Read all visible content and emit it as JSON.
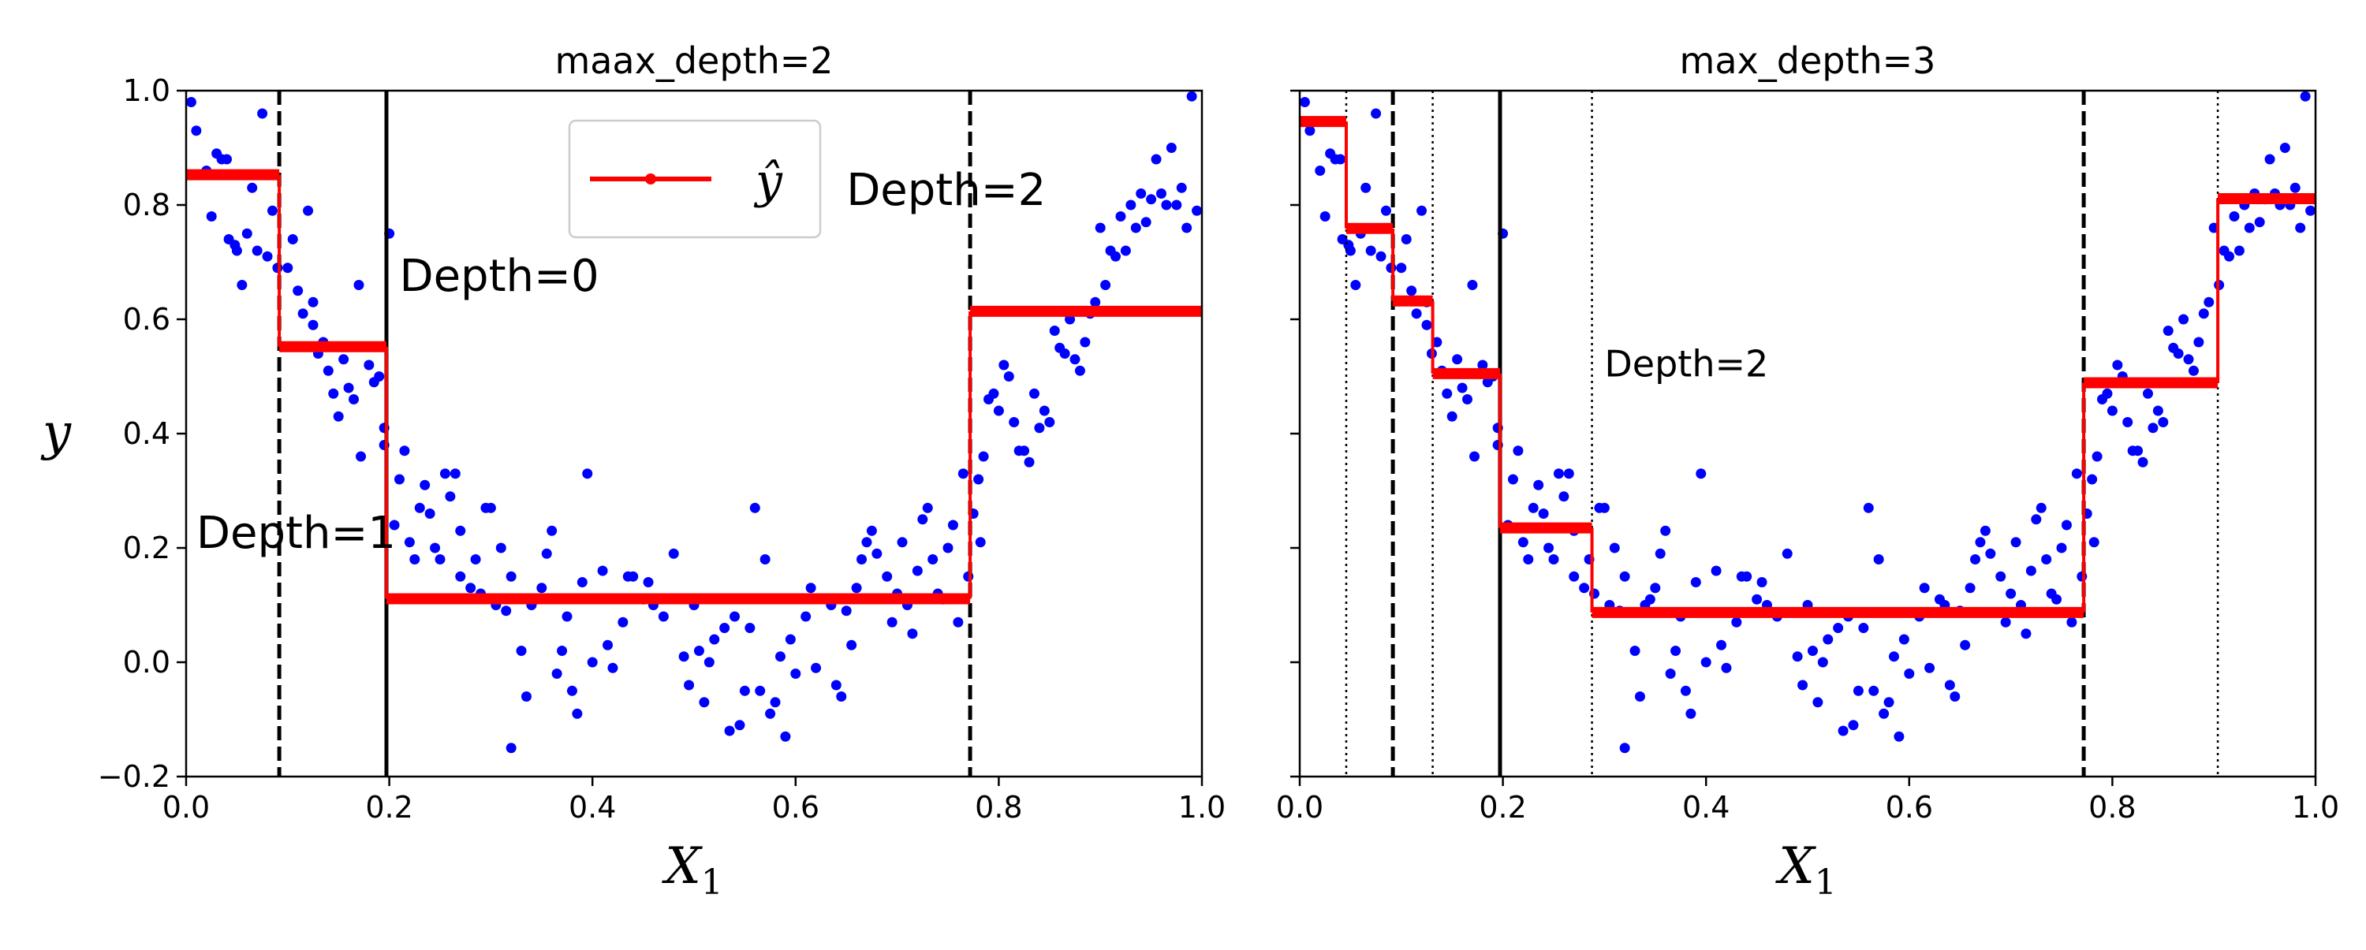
{
  "chart_data": [
    {
      "type": "scatter",
      "title": "maax_depth=2",
      "xlabel": "X",
      "xlabel_sub": "1",
      "ylabel": "y",
      "xlim": [
        0.0,
        1.0
      ],
      "ylim": [
        -0.2,
        1.0
      ],
      "xticks": [
        "0.0",
        "0.2",
        "0.4",
        "0.6",
        "0.8",
        "1.0"
      ],
      "yticks": [
        "−0.2",
        "0.0",
        "0.2",
        "0.4",
        "0.6",
        "0.8",
        "1.0"
      ],
      "grid": false,
      "legend": {
        "placement": "top-center",
        "entry": "ŷ",
        "color": "#ff0000"
      },
      "prediction_color": "#ff0000",
      "scatter_color": "#0000ff",
      "prediction_steps": [
        {
          "x0": 0.0,
          "x1": 0.0917,
          "y": 0.853
        },
        {
          "x0": 0.0917,
          "x1": 0.1972,
          "y": 0.552
        },
        {
          "x0": 0.1972,
          "x1": 0.7718,
          "y": 0.111
        },
        {
          "x0": 0.7718,
          "x1": 1.0,
          "y": 0.614
        }
      ],
      "split_lines": [
        {
          "x": 0.1972,
          "style": "solid",
          "width": 5
        },
        {
          "x": 0.0917,
          "style": "dashed",
          "width": 5
        },
        {
          "x": 0.7718,
          "style": "dashed",
          "width": 5
        }
      ],
      "annotations": [
        {
          "text": "Depth=0",
          "x": 0.21,
          "y": 0.65,
          "size": "big"
        },
        {
          "text": "Depth=1",
          "x": 0.01,
          "y": 0.2,
          "size": "big"
        },
        {
          "text": "Depth=2",
          "x": 0.65,
          "y": 0.8,
          "size": "big"
        }
      ]
    },
    {
      "type": "scatter",
      "title": "max_depth=3",
      "xlabel": "X",
      "xlabel_sub": "1",
      "xlim": [
        0.0,
        1.0
      ],
      "ylim": [
        -0.2,
        1.0
      ],
      "xticks": [
        "0.0",
        "0.2",
        "0.4",
        "0.6",
        "0.8",
        "1.0"
      ],
      "grid": false,
      "prediction_color": "#ff0000",
      "scatter_color": "#0000ff",
      "prediction_steps": [
        {
          "x0": 0.0,
          "x1": 0.0458,
          "y": 0.946
        },
        {
          "x0": 0.0458,
          "x1": 0.0917,
          "y": 0.759
        },
        {
          "x0": 0.0917,
          "x1": 0.1309,
          "y": 0.632
        },
        {
          "x0": 0.1309,
          "x1": 0.1972,
          "y": 0.505
        },
        {
          "x0": 0.1972,
          "x1": 0.2877,
          "y": 0.235
        },
        {
          "x0": 0.2877,
          "x1": 0.7718,
          "y": 0.087
        },
        {
          "x0": 0.7718,
          "x1": 0.9038,
          "y": 0.489
        },
        {
          "x0": 0.9038,
          "x1": 1.0,
          "y": 0.811
        }
      ],
      "split_lines": [
        {
          "x": 0.1972,
          "style": "solid",
          "width": 5
        },
        {
          "x": 0.0917,
          "style": "dashed",
          "width": 5
        },
        {
          "x": 0.7718,
          "style": "dashed",
          "width": 5
        },
        {
          "x": 0.0458,
          "style": "dotted",
          "width": 2.5
        },
        {
          "x": 0.1309,
          "style": "dotted",
          "width": 2.5
        },
        {
          "x": 0.2877,
          "style": "dotted",
          "width": 2.5
        },
        {
          "x": 0.9038,
          "style": "dotted",
          "width": 2.5
        }
      ],
      "annotations": [
        {
          "text": "Depth=2",
          "x": 0.3,
          "y": 0.5,
          "size": "small"
        }
      ]
    }
  ],
  "scatter_points": [
    [
      0.005,
      0.98
    ],
    [
      0.01,
      0.93
    ],
    [
      0.02,
      0.86
    ],
    [
      0.025,
      0.78
    ],
    [
      0.03,
      0.89
    ],
    [
      0.035,
      0.88
    ],
    [
      0.04,
      0.88
    ],
    [
      0.042,
      0.74
    ],
    [
      0.048,
      0.73
    ],
    [
      0.05,
      0.72
    ],
    [
      0.055,
      0.66
    ],
    [
      0.06,
      0.75
    ],
    [
      0.065,
      0.83
    ],
    [
      0.07,
      0.72
    ],
    [
      0.075,
      0.96
    ],
    [
      0.08,
      0.71
    ],
    [
      0.085,
      0.79
    ],
    [
      0.09,
      0.69
    ],
    [
      0.1,
      0.69
    ],
    [
      0.105,
      0.74
    ],
    [
      0.11,
      0.65
    ],
    [
      0.115,
      0.61
    ],
    [
      0.12,
      0.79
    ],
    [
      0.125,
      0.59
    ],
    [
      0.125,
      0.63
    ],
    [
      0.13,
      0.54
    ],
    [
      0.135,
      0.56
    ],
    [
      0.14,
      0.51
    ],
    [
      0.145,
      0.47
    ],
    [
      0.15,
      0.43
    ],
    [
      0.155,
      0.53
    ],
    [
      0.16,
      0.48
    ],
    [
      0.165,
      0.46
    ],
    [
      0.17,
      0.66
    ],
    [
      0.172,
      0.36
    ],
    [
      0.18,
      0.52
    ],
    [
      0.185,
      0.49
    ],
    [
      0.19,
      0.5
    ],
    [
      0.195,
      0.41
    ],
    [
      0.195,
      0.38
    ],
    [
      0.2,
      0.75
    ],
    [
      0.205,
      0.24
    ],
    [
      0.21,
      0.32
    ],
    [
      0.215,
      0.37
    ],
    [
      0.22,
      0.21
    ],
    [
      0.225,
      0.18
    ],
    [
      0.23,
      0.27
    ],
    [
      0.235,
      0.31
    ],
    [
      0.24,
      0.26
    ],
    [
      0.245,
      0.2
    ],
    [
      0.25,
      0.18
    ],
    [
      0.255,
      0.33
    ],
    [
      0.26,
      0.29
    ],
    [
      0.265,
      0.33
    ],
    [
      0.27,
      0.23
    ],
    [
      0.27,
      0.15
    ],
    [
      0.28,
      0.13
    ],
    [
      0.285,
      0.18
    ],
    [
      0.29,
      0.12
    ],
    [
      0.295,
      0.27
    ],
    [
      0.3,
      0.27
    ],
    [
      0.305,
      0.1
    ],
    [
      0.31,
      0.2
    ],
    [
      0.315,
      0.09
    ],
    [
      0.32,
      -0.15
    ],
    [
      0.32,
      0.15
    ],
    [
      0.33,
      0.02
    ],
    [
      0.335,
      -0.06
    ],
    [
      0.34,
      0.1
    ],
    [
      0.345,
      0.11
    ],
    [
      0.35,
      0.13
    ],
    [
      0.355,
      0.19
    ],
    [
      0.36,
      0.23
    ],
    [
      0.365,
      -0.02
    ],
    [
      0.37,
      0.02
    ],
    [
      0.375,
      0.08
    ],
    [
      0.38,
      -0.05
    ],
    [
      0.385,
      -0.09
    ],
    [
      0.39,
      0.14
    ],
    [
      0.395,
      0.33
    ],
    [
      0.4,
      0.0
    ],
    [
      0.41,
      0.16
    ],
    [
      0.415,
      0.03
    ],
    [
      0.42,
      -0.01
    ],
    [
      0.43,
      0.07
    ],
    [
      0.435,
      0.15
    ],
    [
      0.44,
      0.15
    ],
    [
      0.45,
      0.11
    ],
    [
      0.455,
      0.14
    ],
    [
      0.46,
      0.1
    ],
    [
      0.47,
      0.08
    ],
    [
      0.48,
      0.19
    ],
    [
      0.49,
      0.01
    ],
    [
      0.495,
      -0.04
    ],
    [
      0.5,
      0.1
    ],
    [
      0.505,
      0.02
    ],
    [
      0.51,
      -0.07
    ],
    [
      0.515,
      0.0
    ],
    [
      0.52,
      0.04
    ],
    [
      0.53,
      0.06
    ],
    [
      0.535,
      -0.12
    ],
    [
      0.54,
      0.08
    ],
    [
      0.545,
      -0.11
    ],
    [
      0.55,
      -0.05
    ],
    [
      0.555,
      0.06
    ],
    [
      0.56,
      0.27
    ],
    [
      0.565,
      -0.05
    ],
    [
      0.57,
      0.18
    ],
    [
      0.575,
      -0.09
    ],
    [
      0.58,
      -0.07
    ],
    [
      0.585,
      0.01
    ],
    [
      0.59,
      -0.13
    ],
    [
      0.595,
      0.04
    ],
    [
      0.6,
      -0.02
    ],
    [
      0.61,
      0.08
    ],
    [
      0.615,
      0.13
    ],
    [
      0.62,
      -0.01
    ],
    [
      0.63,
      0.11
    ],
    [
      0.635,
      0.1
    ],
    [
      0.64,
      -0.04
    ],
    [
      0.645,
      -0.06
    ],
    [
      0.65,
      0.09
    ],
    [
      0.655,
      0.03
    ],
    [
      0.66,
      0.13
    ],
    [
      0.665,
      0.18
    ],
    [
      0.67,
      0.21
    ],
    [
      0.675,
      0.23
    ],
    [
      0.68,
      0.19
    ],
    [
      0.69,
      0.15
    ],
    [
      0.695,
      0.07
    ],
    [
      0.7,
      0.12
    ],
    [
      0.705,
      0.21
    ],
    [
      0.71,
      0.1
    ],
    [
      0.715,
      0.05
    ],
    [
      0.72,
      0.16
    ],
    [
      0.725,
      0.25
    ],
    [
      0.73,
      0.27
    ],
    [
      0.735,
      0.18
    ],
    [
      0.74,
      0.12
    ],
    [
      0.745,
      0.11
    ],
    [
      0.75,
      0.2
    ],
    [
      0.755,
      0.24
    ],
    [
      0.76,
      0.07
    ],
    [
      0.765,
      0.33
    ],
    [
      0.77,
      0.15
    ],
    [
      0.775,
      0.26
    ],
    [
      0.78,
      0.32
    ],
    [
      0.782,
      0.21
    ],
    [
      0.785,
      0.36
    ],
    [
      0.79,
      0.46
    ],
    [
      0.795,
      0.47
    ],
    [
      0.8,
      0.44
    ],
    [
      0.805,
      0.52
    ],
    [
      0.81,
      0.5
    ],
    [
      0.815,
      0.42
    ],
    [
      0.82,
      0.37
    ],
    [
      0.825,
      0.37
    ],
    [
      0.83,
      0.35
    ],
    [
      0.835,
      0.47
    ],
    [
      0.84,
      0.41
    ],
    [
      0.845,
      0.44
    ],
    [
      0.85,
      0.42
    ],
    [
      0.855,
      0.58
    ],
    [
      0.86,
      0.55
    ],
    [
      0.865,
      0.54
    ],
    [
      0.87,
      0.6
    ],
    [
      0.875,
      0.53
    ],
    [
      0.88,
      0.51
    ],
    [
      0.885,
      0.56
    ],
    [
      0.89,
      0.61
    ],
    [
      0.895,
      0.63
    ],
    [
      0.9,
      0.76
    ],
    [
      0.905,
      0.66
    ],
    [
      0.91,
      0.72
    ],
    [
      0.915,
      0.71
    ],
    [
      0.92,
      0.78
    ],
    [
      0.925,
      0.72
    ],
    [
      0.93,
      0.8
    ],
    [
      0.935,
      0.76
    ],
    [
      0.94,
      0.82
    ],
    [
      0.945,
      0.77
    ],
    [
      0.95,
      0.81
    ],
    [
      0.955,
      0.88
    ],
    [
      0.96,
      0.82
    ],
    [
      0.965,
      0.8
    ],
    [
      0.97,
      0.9
    ],
    [
      0.975,
      0.8
    ],
    [
      0.98,
      0.83
    ],
    [
      0.985,
      0.76
    ],
    [
      0.99,
      0.99
    ],
    [
      0.995,
      0.79
    ]
  ]
}
